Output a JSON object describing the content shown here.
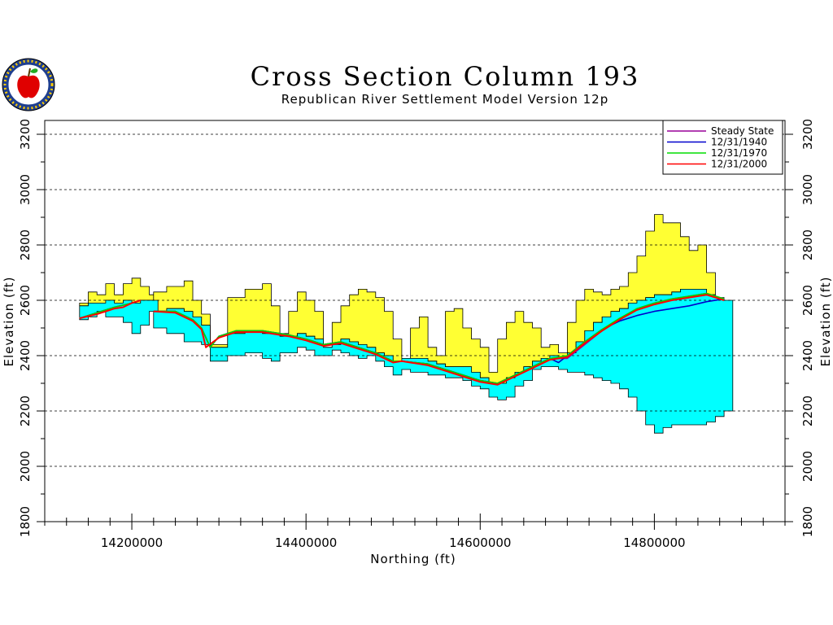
{
  "colors": {
    "top_fill": "#ffff33",
    "aquifer_fill": "#00ffff",
    "steady_state": "#990099",
    "y1940": "#0000cc",
    "y1970": "#00dd00",
    "y2000": "#ff0000"
  },
  "chart_data": {
    "type": "line",
    "title": "Cross Section Column 193",
    "subtitle": "Republican River Settlement Model Version 12p",
    "xlabel": "Northing (ft)",
    "ylabel": "Elevation (ft)",
    "ylabel_right": "Elevation (ft)",
    "xlim": [
      14100000,
      14950000
    ],
    "ylim": [
      1800,
      3250
    ],
    "x_ticks": [
      14200000,
      14400000,
      14600000,
      14800000
    ],
    "y_ticks": [
      1800,
      2000,
      2200,
      2400,
      2600,
      2800,
      3000,
      3200
    ],
    "grid": "horizontal dashed",
    "legend_position": "top-right",
    "bands": [
      {
        "name": "upper layer",
        "color_key": "top_fill",
        "segments": [
          {
            "x": [
              14140000,
              14150000,
              14160000,
              14170000,
              14180000,
              14190000,
              14200000,
              14210000,
              14220000
            ],
            "top": [
              2590,
              2630,
              2620,
              2660,
              2620,
              2660,
              2680,
              2650,
              2620
            ],
            "bottom": [
              2580,
              2590,
              2590,
              2600,
              2590,
              2600,
              2590,
              2600,
              2600
            ]
          },
          {
            "x": [
              14225000,
              14240000,
              14260000,
              14270000,
              14280000,
              14290000,
              14310000,
              14330000,
              14350000,
              14360000,
              14370000,
              14380000,
              14390000,
              14400000,
              14410000,
              14420000,
              14430000,
              14440000,
              14450000,
              14460000,
              14470000,
              14480000,
              14490000,
              14500000,
              14510000,
              14520000,
              14530000,
              14540000,
              14550000,
              14560000,
              14570000,
              14580000,
              14590000,
              14600000,
              14610000,
              14620000,
              14630000,
              14640000,
              14650000,
              14660000,
              14670000,
              14680000,
              14690000,
              14700000,
              14710000,
              14720000,
              14730000,
              14740000,
              14750000,
              14760000,
              14770000,
              14780000,
              14790000,
              14800000,
              14810000,
              14820000,
              14830000,
              14840000,
              14850000,
              14860000
            ],
            "top": [
              2630,
              2650,
              2670,
              2600,
              2550,
              2440,
              2610,
              2640,
              2660,
              2580,
              2480,
              2560,
              2630,
              2600,
              2560,
              2430,
              2520,
              2580,
              2620,
              2640,
              2630,
              2610,
              2560,
              2460,
              2390,
              2500,
              2540,
              2430,
              2400,
              2560,
              2570,
              2500,
              2460,
              2430,
              2340,
              2460,
              2520,
              2560,
              2520,
              2500,
              2430,
              2440,
              2410,
              2520,
              2600,
              2640,
              2630,
              2620,
              2640,
              2650,
              2700,
              2760,
              2850,
              2910,
              2880,
              2880,
              2830,
              2780,
              2800,
              2700
            ],
            "bottom": [
              2560,
              2570,
              2560,
              2540,
              2510,
              2430,
              2480,
              2490,
              2480,
              2480,
              2470,
              2470,
              2480,
              2470,
              2460,
              2430,
              2440,
              2460,
              2450,
              2440,
              2430,
              2410,
              2400,
              2380,
              2390,
              2390,
              2390,
              2380,
              2370,
              2360,
              2360,
              2360,
              2340,
              2320,
              2300,
              2300,
              2320,
              2340,
              2360,
              2380,
              2390,
              2400,
              2390,
              2410,
              2450,
              2490,
              2520,
              2540,
              2560,
              2570,
              2590,
              2600,
              2610,
              2620,
              2620,
              2630,
              2640,
              2640,
              2640,
              2620
            ]
          }
        ]
      },
      {
        "name": "aquifer",
        "color_key": "aquifer_fill",
        "segments": [
          {
            "x": [
              14140000,
              14150000,
              14160000,
              14170000,
              14180000,
              14190000,
              14200000,
              14210000,
              14220000
            ],
            "top": [
              2580,
              2590,
              2590,
              2600,
              2590,
              2600,
              2590,
              2600,
              2600
            ],
            "bottom": [
              2530,
              2540,
              2560,
              2540,
              2540,
              2520,
              2480,
              2510,
              2560
            ]
          },
          {
            "x": [
              14225000,
              14240000,
              14260000,
              14270000,
              14280000,
              14290000,
              14310000,
              14330000,
              14350000,
              14360000,
              14370000,
              14380000,
              14390000,
              14400000,
              14410000,
              14420000,
              14430000,
              14440000,
              14450000,
              14460000,
              14470000,
              14480000,
              14490000,
              14500000,
              14510000,
              14520000,
              14530000,
              14540000,
              14550000,
              14560000,
              14570000,
              14580000,
              14590000,
              14600000,
              14610000,
              14620000,
              14630000,
              14640000,
              14650000,
              14660000,
              14670000,
              14680000,
              14690000,
              14700000,
              14710000,
              14720000,
              14730000,
              14740000,
              14750000,
              14760000,
              14770000,
              14780000,
              14790000,
              14800000,
              14810000,
              14820000,
              14830000,
              14840000,
              14850000,
              14860000,
              14870000,
              14880000
            ],
            "top": [
              2560,
              2570,
              2560,
              2540,
              2510,
              2430,
              2480,
              2490,
              2480,
              2480,
              2470,
              2470,
              2480,
              2470,
              2460,
              2430,
              2440,
              2460,
              2450,
              2440,
              2430,
              2410,
              2400,
              2380,
              2390,
              2390,
              2390,
              2380,
              2370,
              2360,
              2360,
              2360,
              2340,
              2320,
              2300,
              2300,
              2320,
              2340,
              2360,
              2380,
              2390,
              2400,
              2390,
              2410,
              2450,
              2490,
              2520,
              2540,
              2560,
              2570,
              2590,
              2600,
              2610,
              2620,
              2620,
              2630,
              2640,
              2640,
              2640,
              2620,
              2610,
              2600
            ],
            "bottom": [
              2500,
              2480,
              2450,
              2450,
              2440,
              2380,
              2400,
              2410,
              2390,
              2380,
              2410,
              2410,
              2430,
              2420,
              2400,
              2400,
              2420,
              2410,
              2400,
              2390,
              2400,
              2380,
              2360,
              2330,
              2350,
              2340,
              2340,
              2330,
              2330,
              2320,
              2320,
              2310,
              2290,
              2280,
              2250,
              2240,
              2250,
              2290,
              2310,
              2350,
              2360,
              2360,
              2350,
              2340,
              2340,
              2330,
              2320,
              2310,
              2300,
              2280,
              2250,
              2200,
              2150,
              2120,
              2140,
              2150,
              2150,
              2150,
              2150,
              2160,
              2180,
              2200
            ]
          }
        ]
      }
    ],
    "series": [
      {
        "name": "Steady State",
        "color_key": "steady_state",
        "segments": [
          {
            "x": [
              14140000,
              14160000,
              14180000,
              14200000,
              14210000
            ],
            "y": [
              2535,
              2555,
              2575,
              2590,
              2600
            ]
          },
          {
            "x": [
              14225000,
              14250000,
              14270000,
              14280000,
              14290000,
              14300000,
              14320000,
              14350000,
              14380000,
              14400000,
              14420000,
              14440000,
              14460000,
              14480000,
              14500000,
              14510000,
              14540000,
              14560000,
              14580000,
              14600000,
              14620000,
              14640000,
              14660000,
              14680000,
              14700000,
              14720000,
              14740000,
              14760000,
              14780000,
              14800000,
              14820000,
              14840000,
              14860000,
              14880000
            ],
            "y": [
              2560,
              2560,
              2530,
              2500,
              2430,
              2470,
              2490,
              2490,
              2475,
              2460,
              2440,
              2450,
              2430,
              2410,
              2380,
              2380,
              2370,
              2350,
              2330,
              2310,
              2300,
              2330,
              2360,
              2390,
              2390,
              2440,
              2490,
              2530,
              2570,
              2590,
              2605,
              2615,
              2625,
              2605
            ]
          }
        ]
      },
      {
        "name": "12/31/1940",
        "color_key": "y1940",
        "segments": [
          {
            "x": [
              14140000,
              14160000,
              14180000,
              14200000,
              14210000
            ],
            "y": [
              2535,
              2555,
              2575,
              2590,
              2600
            ]
          },
          {
            "x": [
              14225000,
              14250000,
              14270000,
              14280000,
              14290000,
              14300000,
              14320000,
              14350000,
              14380000,
              14400000,
              14420000,
              14440000,
              14460000,
              14480000,
              14500000,
              14510000,
              14540000,
              14560000,
              14580000,
              14600000,
              14620000,
              14640000,
              14660000,
              14680000,
              14690000,
              14700000,
              14720000,
              14740000,
              14760000,
              14780000,
              14800000,
              14820000,
              14840000,
              14860000,
              14880000
            ],
            "y": [
              2560,
              2560,
              2530,
              2500,
              2430,
              2470,
              2490,
              2490,
              2475,
              2460,
              2440,
              2450,
              2430,
              2410,
              2380,
              2380,
              2370,
              2350,
              2330,
              2310,
              2300,
              2330,
              2360,
              2390,
              2375,
              2400,
              2450,
              2495,
              2525,
              2545,
              2560,
              2570,
              2580,
              2595,
              2605
            ]
          }
        ]
      },
      {
        "name": "12/31/1970",
        "color_key": "y1970",
        "segments": [
          {
            "x": [
              14140000,
              14160000,
              14180000,
              14200000,
              14210000
            ],
            "y": [
              2535,
              2555,
              2575,
              2590,
              2600
            ]
          },
          {
            "x": [
              14225000,
              14250000,
              14270000,
              14280000,
              14290000,
              14300000,
              14320000,
              14350000,
              14380000,
              14400000,
              14420000,
              14440000,
              14460000,
              14480000,
              14500000,
              14510000,
              14540000,
              14560000,
              14580000,
              14600000,
              14620000,
              14640000,
              14660000,
              14680000,
              14700000,
              14720000,
              14740000,
              14760000,
              14780000,
              14800000,
              14820000,
              14840000,
              14860000,
              14880000
            ],
            "y": [
              2560,
              2560,
              2530,
              2500,
              2430,
              2470,
              2490,
              2490,
              2475,
              2460,
              2440,
              2450,
              2430,
              2410,
              2380,
              2380,
              2370,
              2350,
              2330,
              2310,
              2300,
              2330,
              2360,
              2390,
              2400,
              2450,
              2495,
              2535,
              2570,
              2590,
              2605,
              2615,
              2625,
              2605
            ]
          }
        ]
      },
      {
        "name": "12/31/2000",
        "color_key": "y2000",
        "segments": [
          {
            "x": [
              14140000,
              14160000,
              14180000,
              14190000,
              14200000,
              14210000
            ],
            "y": [
              2535,
              2550,
              2570,
              2575,
              2590,
              2600
            ]
          },
          {
            "x": [
              14225000,
              14250000,
              14270000,
              14280000,
              14285000,
              14300000,
              14320000,
              14350000,
              14380000,
              14400000,
              14420000,
              14440000,
              14460000,
              14480000,
              14500000,
              14510000,
              14540000,
              14560000,
              14580000,
              14600000,
              14620000,
              14640000,
              14660000,
              14680000,
              14700000,
              14720000,
              14740000,
              14760000,
              14780000,
              14800000,
              14820000,
              14840000,
              14860000,
              14880000
            ],
            "y": [
              2560,
              2555,
              2525,
              2495,
              2430,
              2465,
              2485,
              2485,
              2470,
              2455,
              2435,
              2445,
              2425,
              2405,
              2375,
              2380,
              2365,
              2345,
              2325,
              2305,
              2295,
              2325,
              2355,
              2385,
              2395,
              2445,
              2490,
              2530,
              2565,
              2585,
              2600,
              2610,
              2620,
              2600
            ]
          }
        ]
      }
    ]
  }
}
